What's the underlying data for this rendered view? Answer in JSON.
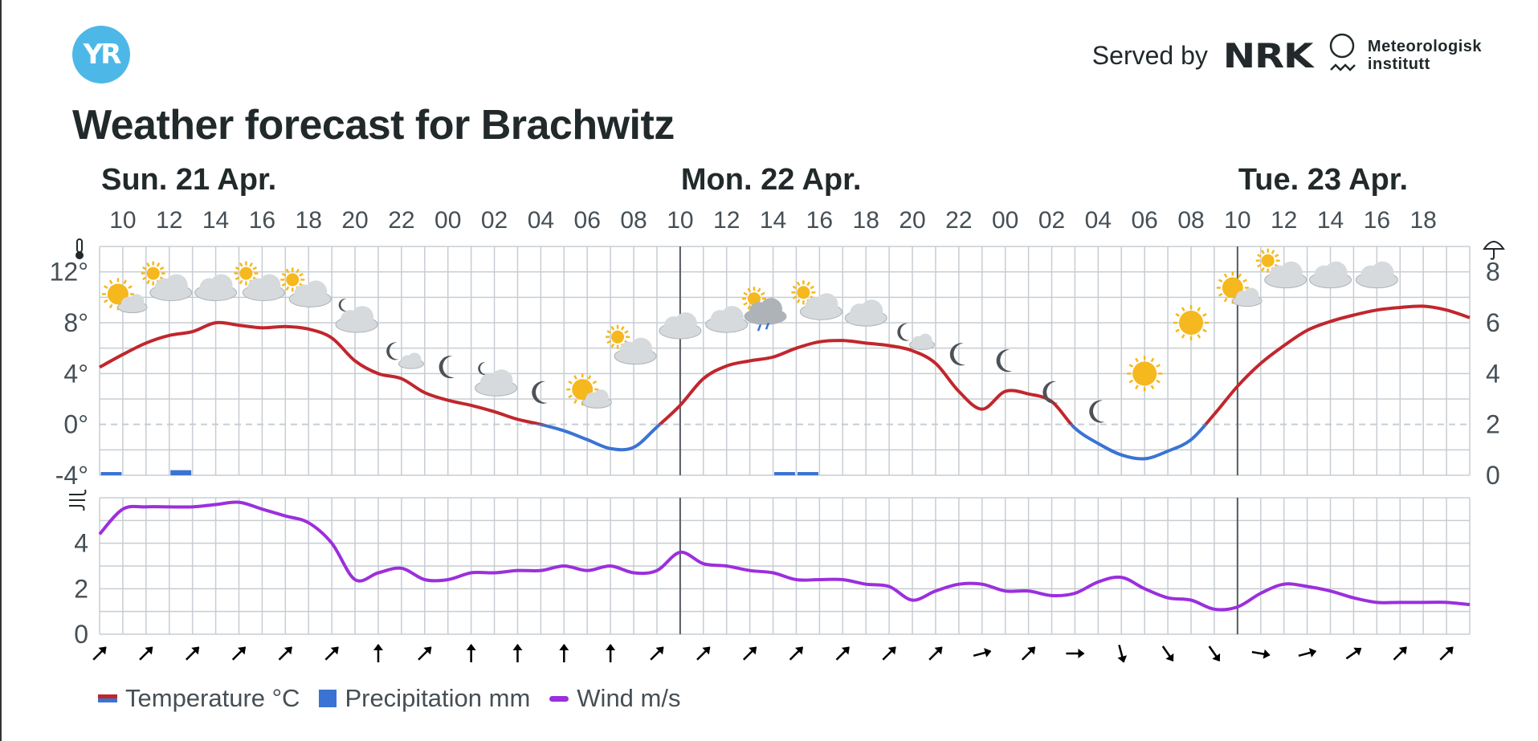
{
  "brand": {
    "logo_text": "YR"
  },
  "header": {
    "served_by": "Served by",
    "nrk": "NRK",
    "met_line1": "Meteorologisk",
    "met_line2": "institutt"
  },
  "title": "Weather forecast for Brachwitz",
  "chart_data": {
    "type": "line",
    "days": [
      {
        "label": "Sun. 21 Apr.",
        "start_hour": 10
      },
      {
        "label": "Mon. 22 Apr.",
        "start_hour": 34
      },
      {
        "label": "Tue. 23 Apr.",
        "start_hour": 58
      }
    ],
    "x_range": [
      9,
      68
    ],
    "hour_ticks": [
      "10",
      "12",
      "14",
      "16",
      "18",
      "20",
      "22",
      "00",
      "02",
      "04",
      "06",
      "08",
      "10",
      "12",
      "14",
      "16",
      "18",
      "20",
      "22",
      "00",
      "02",
      "04",
      "06",
      "08",
      "10",
      "12",
      "14",
      "16",
      "18"
    ],
    "temperature": {
      "name": "Temperature °C",
      "unit": "°C",
      "ylim": [
        -4,
        14
      ],
      "y_ticks": [
        -4,
        0,
        4,
        8,
        12
      ],
      "y_tick_labels": [
        "-4°",
        "0°",
        "4°",
        "8°",
        "12°"
      ],
      "colors": {
        "above_zero": "#c0272d",
        "below_zero": "#3a73d3"
      },
      "x": [
        9,
        10,
        11,
        12,
        13,
        14,
        15,
        16,
        17,
        18,
        19,
        20,
        21,
        22,
        23,
        24,
        25,
        26,
        27,
        28,
        29,
        30,
        31,
        32,
        33,
        34,
        35,
        36,
        37,
        38,
        39,
        40,
        41,
        42,
        43,
        44,
        45,
        46,
        47,
        48,
        49,
        50,
        51,
        52,
        53,
        54,
        55,
        56,
        57,
        58,
        59,
        60,
        61,
        62,
        63,
        64,
        65,
        66,
        67,
        68
      ],
      "values": [
        4.5,
        5.5,
        6.4,
        7.0,
        7.3,
        8.0,
        7.8,
        7.6,
        7.7,
        7.5,
        6.8,
        5.0,
        4.0,
        3.6,
        2.5,
        1.9,
        1.5,
        1.0,
        0.4,
        0,
        -0.5,
        -1.2,
        -1.9,
        -1.8,
        -0.2,
        1.5,
        3.6,
        4.6,
        5.0,
        5.3,
        6.0,
        6.5,
        6.6,
        6.4,
        6.2,
        5.8,
        4.8,
        2.6,
        1.2,
        2.6,
        2.4,
        1.8,
        -0.3,
        -1.5,
        -2.4,
        -2.7,
        -2.1,
        -1.2,
        0.8,
        3.0,
        4.8,
        6.2,
        7.4,
        8.1,
        8.6,
        9.0,
        9.2,
        9.3,
        9.0,
        8.4
      ]
    },
    "precipitation": {
      "name": "Precipitation mm",
      "unit": "mm",
      "ylim": [
        0,
        9
      ],
      "y_ticks": [
        0,
        2,
        4,
        6,
        8
      ],
      "color": "#3a73d3",
      "bars": [
        {
          "x": 9.5,
          "value": 0.1
        },
        {
          "x": 12.5,
          "value": 0.2
        },
        {
          "x": 38.5,
          "value": 0.1
        },
        {
          "x": 39.5,
          "value": 0.1
        }
      ]
    },
    "wind": {
      "name": "Wind m/s",
      "unit": "m/s",
      "ylim": [
        0,
        6
      ],
      "y_ticks": [
        0,
        2,
        4
      ],
      "color": "#9b2fdd",
      "x": [
        9,
        10,
        11,
        12,
        13,
        14,
        15,
        16,
        17,
        18,
        19,
        20,
        21,
        22,
        23,
        24,
        25,
        26,
        27,
        28,
        29,
        30,
        31,
        32,
        33,
        34,
        35,
        36,
        37,
        38,
        39,
        40,
        41,
        42,
        43,
        44,
        45,
        46,
        47,
        48,
        49,
        50,
        51,
        52,
        53,
        54,
        55,
        56,
        57,
        58,
        59,
        60,
        61,
        62,
        63,
        64,
        65,
        66,
        67,
        68
      ],
      "values": [
        4.4,
        5.5,
        5.6,
        5.6,
        5.6,
        5.7,
        5.8,
        5.5,
        5.2,
        4.9,
        4.0,
        2.4,
        2.7,
        2.9,
        2.4,
        2.4,
        2.7,
        2.7,
        2.8,
        2.8,
        3.0,
        2.8,
        3.0,
        2.7,
        2.8,
        3.6,
        3.1,
        3.0,
        2.8,
        2.7,
        2.4,
        2.4,
        2.4,
        2.2,
        2.1,
        1.5,
        1.9,
        2.2,
        2.2,
        1.9,
        1.9,
        1.7,
        1.8,
        2.3,
        2.5,
        2.0,
        1.6,
        1.5,
        1.1,
        1.2,
        1.8,
        2.2,
        2.1,
        1.9,
        1.6,
        1.4,
        1.4,
        1.4,
        1.4,
        1.3
      ]
    },
    "wind_directions_deg": [
      225,
      225,
      225,
      225,
      225,
      225,
      180,
      225,
      180,
      180,
      180,
      180,
      225,
      225,
      225,
      225,
      225,
      225,
      225,
      255,
      225,
      270,
      345,
      325,
      325,
      280,
      255,
      235,
      225,
      225
    ],
    "symbols": [
      {
        "x": 10,
        "temp": 10.0,
        "icon": "partly-cloudy-day"
      },
      {
        "x": 12,
        "temp": 11.0,
        "icon": "partly-cloudy-day-heavy"
      },
      {
        "x": 14,
        "temp": 11.0,
        "icon": "cloudy"
      },
      {
        "x": 16,
        "temp": 11.0,
        "icon": "partly-cloudy-day-heavy"
      },
      {
        "x": 18,
        "temp": 10.5,
        "icon": "partly-cloudy-day-heavy"
      },
      {
        "x": 20,
        "temp": 8.5,
        "icon": "partly-cloudy-night-heavy"
      },
      {
        "x": 22,
        "temp": 5.5,
        "icon": "partly-cloudy-night"
      },
      {
        "x": 24,
        "temp": 4.5,
        "icon": "clear-night"
      },
      {
        "x": 26,
        "temp": 3.5,
        "icon": "partly-cloudy-night-heavy"
      },
      {
        "x": 28,
        "temp": 2.5,
        "icon": "clear-night"
      },
      {
        "x": 30,
        "temp": 2.5,
        "icon": "partly-cloudy-day"
      },
      {
        "x": 32,
        "temp": 6.0,
        "icon": "partly-cloudy-day-heavy"
      },
      {
        "x": 34,
        "temp": 8.0,
        "icon": "cloudy"
      },
      {
        "x": 36,
        "temp": 8.5,
        "icon": "cloudy"
      },
      {
        "x": 37.6,
        "temp": 9.0,
        "icon": "light-rain-showers"
      },
      {
        "x": 40,
        "temp": 9.5,
        "icon": "partly-cloudy-day-heavy"
      },
      {
        "x": 42,
        "temp": 9.0,
        "icon": "cloudy"
      },
      {
        "x": 44,
        "temp": 7.0,
        "icon": "partly-cloudy-night"
      },
      {
        "x": 46,
        "temp": 5.5,
        "icon": "clear-night"
      },
      {
        "x": 48,
        "temp": 5.0,
        "icon": "clear-night"
      },
      {
        "x": 50,
        "temp": 2.5,
        "icon": "clear-night"
      },
      {
        "x": 52,
        "temp": 1.0,
        "icon": "clear-night"
      },
      {
        "x": 54,
        "temp": 4.0,
        "icon": "clear-day"
      },
      {
        "x": 56,
        "temp": 8.0,
        "icon": "clear-day"
      },
      {
        "x": 58,
        "temp": 10.5,
        "icon": "partly-cloudy-day"
      },
      {
        "x": 60,
        "temp": 12.0,
        "icon": "partly-cloudy-day-heavy"
      },
      {
        "x": 62,
        "temp": 12.0,
        "icon": "cloudy"
      },
      {
        "x": 64,
        "temp": 12.0,
        "icon": "cloudy"
      }
    ],
    "grid": true,
    "zero_line": "dashed"
  },
  "legend": [
    {
      "key": "temperature",
      "label": "Temperature °C"
    },
    {
      "key": "precipitation",
      "label": "Precipitation mm"
    },
    {
      "key": "wind",
      "label": "Wind m/s"
    }
  ],
  "colors": {
    "grid": "#c7cdd3",
    "day_divider": "#555b61",
    "axis_text": "#454f55",
    "cloud": "#d6dadd",
    "cloud_dark": "#aeb3b8",
    "sun": "#f5b81e",
    "moon": "#4c5257"
  }
}
